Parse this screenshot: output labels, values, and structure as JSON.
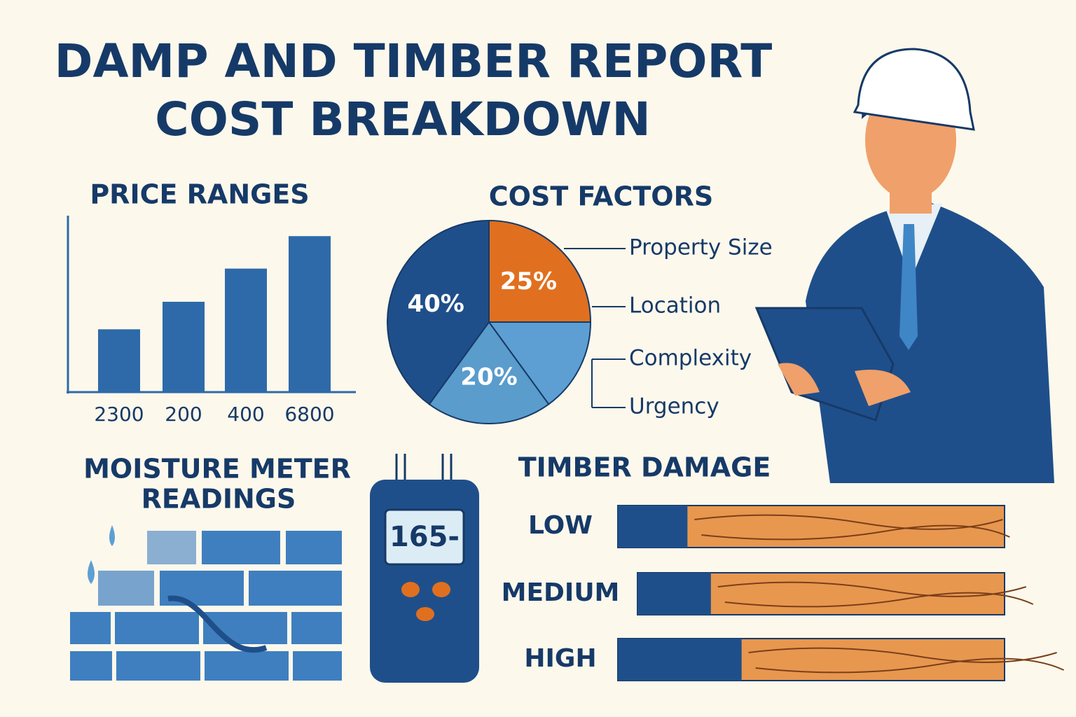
{
  "header": {
    "title_lines": [
      "DAMP AND TIMBER REPORT",
      "COST BREAKDOWN"
    ]
  },
  "price_ranges": {
    "type": "bar",
    "title": "PRICE RANGES",
    "categories": [
      "2300",
      "200",
      "400",
      "6800"
    ],
    "values": [
      89,
      128,
      175,
      221
    ],
    "ylim": [
      0,
      250
    ],
    "color": "#2e6aa9"
  },
  "cost_factors": {
    "type": "pie",
    "title": "COST FACTORS",
    "categories": [
      "Property Size",
      "Location",
      "Complexity",
      "Urgency"
    ],
    "values": [
      25,
      15,
      20,
      40
    ],
    "value_labels": [
      "25%",
      null,
      "20%",
      "40%"
    ],
    "colors": [
      "#e0701f",
      "#5d9fd3",
      "#5a9ccc",
      "#1f4f8a"
    ]
  },
  "moisture": {
    "title_lines": [
      "MOISTURE METER",
      "READINGS"
    ],
    "display": "165-"
  },
  "timber_damage": {
    "type": "bar",
    "title": "TIMBER DAMAGE",
    "categories": [
      "LOW",
      "MEDIUM",
      "HIGH"
    ],
    "values": [
      18,
      20,
      32
    ],
    "xlim": [
      0,
      100
    ],
    "color": "#1f4f8a"
  }
}
